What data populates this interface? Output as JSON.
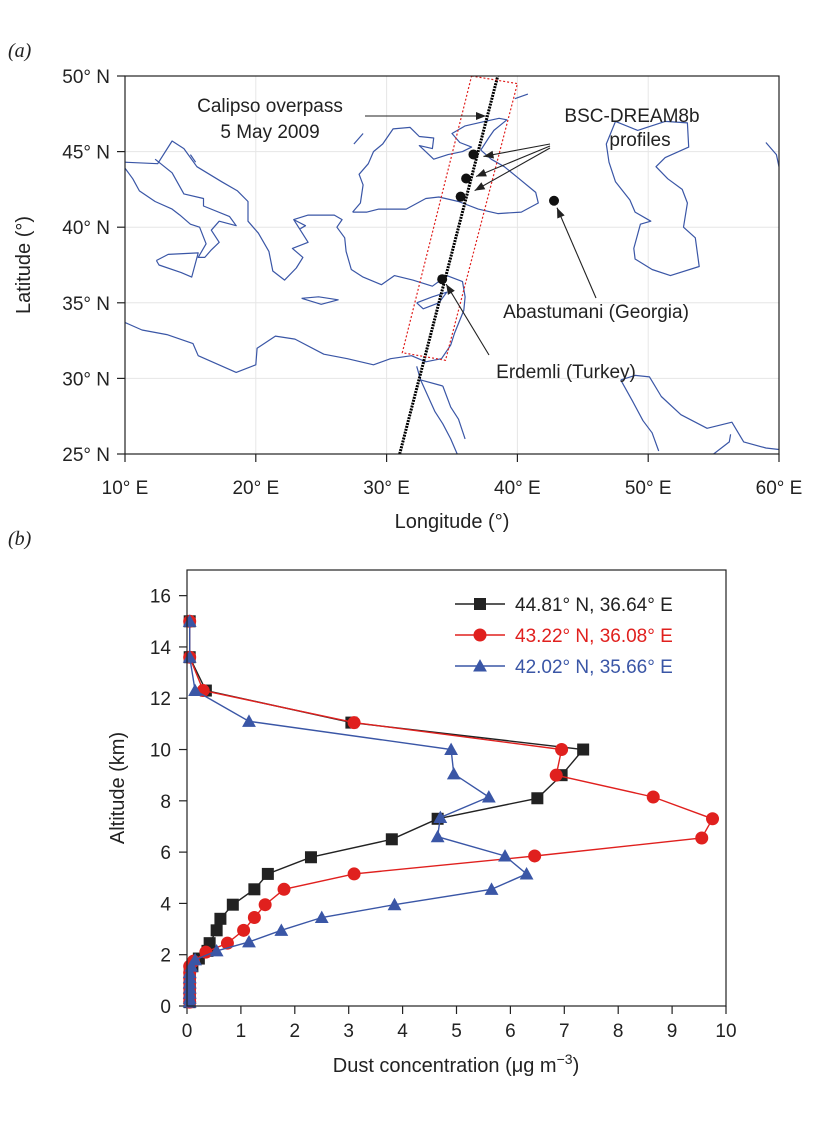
{
  "panel_a_label": "(a)",
  "panel_b_label": "(b)",
  "chart_data": [
    {
      "type": "map",
      "xlabel": "Longitude (°)",
      "ylabel": "Latitude (°)",
      "xlim": [
        10,
        60
      ],
      "ylim": [
        25,
        50
      ],
      "xticks": [
        10,
        20,
        30,
        40,
        50,
        60
      ],
      "xtick_labels": [
        "10° E",
        "20° E",
        "30° E",
        "40° E",
        "50° E",
        "60° E"
      ],
      "yticks": [
        25,
        30,
        35,
        40,
        45,
        50
      ],
      "ytick_labels": [
        "25° N",
        "30° N",
        "35° N",
        "40° N",
        "45° N",
        "50° N"
      ],
      "coastline_color": "#3a56a6",
      "track_color": "#000000",
      "box_color": "#e0201e",
      "annotations": {
        "calipso_line1": "Calipso overpass",
        "calipso_line2": "5 May 2009",
        "bsc_line1": "BSC-DREAM8b",
        "bsc_line2": "profiles",
        "abastumani": "Abastumani (Georgia)",
        "erdemli": "Erdemli (Turkey)"
      },
      "calipso_track": [
        [
          31.0,
          25.0
        ],
        [
          38.5,
          50.0
        ]
      ],
      "overpass_box": [
        [
          36.5,
          50.0
        ],
        [
          40.0,
          49.5
        ],
        [
          34.5,
          31.2
        ],
        [
          31.2,
          31.7
        ]
      ],
      "profile_points": [
        [
          36.64,
          44.81
        ],
        [
          36.08,
          43.22
        ],
        [
          35.66,
          42.02
        ]
      ],
      "stations": [
        {
          "name": "Abastumani",
          "lon": 42.8,
          "lat": 41.75
        },
        {
          "name": "Erdemli",
          "lon": 34.25,
          "lat": 36.56
        }
      ]
    },
    {
      "type": "line",
      "xlabel": "Dust concentration (μg m",
      "xlabel_sup": "−3",
      "xlabel_end": ")",
      "ylabel": "Altitude (km)",
      "xlim": [
        0,
        10
      ],
      "ylim": [
        0,
        17
      ],
      "xticks": [
        0,
        1,
        2,
        3,
        4,
        5,
        6,
        7,
        8,
        9,
        10
      ],
      "yticks": [
        0,
        2,
        4,
        6,
        8,
        10,
        12,
        14,
        16
      ],
      "legend_position": "top-right",
      "series": [
        {
          "name": "44.81° N, 36.64° E",
          "color": "#222222",
          "marker": "square",
          "points": [
            [
              0.05,
              0.15
            ],
            [
              0.05,
              0.3
            ],
            [
              0.05,
              0.5
            ],
            [
              0.05,
              0.7
            ],
            [
              0.05,
              0.9
            ],
            [
              0.05,
              1.1
            ],
            [
              0.05,
              1.3
            ],
            [
              0.1,
              1.55
            ],
            [
              0.22,
              1.85
            ],
            [
              0.38,
              2.15
            ],
            [
              0.42,
              2.45
            ],
            [
              0.55,
              2.95
            ],
            [
              0.62,
              3.4
            ],
            [
              0.85,
              3.95
            ],
            [
              1.25,
              4.55
            ],
            [
              1.5,
              5.15
            ],
            [
              2.3,
              5.8
            ],
            [
              3.8,
              6.5
            ],
            [
              4.65,
              7.3
            ],
            [
              6.5,
              8.1
            ],
            [
              6.95,
              9.0
            ],
            [
              7.35,
              10.0
            ],
            [
              3.05,
              11.05
            ],
            [
              0.35,
              12.3
            ],
            [
              0.05,
              13.6
            ],
            [
              0.05,
              15.0
            ]
          ]
        },
        {
          "name": "43.22° N, 36.08° E",
          "color": "#e0201e",
          "marker": "circle",
          "points": [
            [
              0.05,
              0.15
            ],
            [
              0.05,
              0.3
            ],
            [
              0.05,
              0.5
            ],
            [
              0.05,
              0.7
            ],
            [
              0.05,
              0.9
            ],
            [
              0.05,
              1.1
            ],
            [
              0.05,
              1.3
            ],
            [
              0.05,
              1.55
            ],
            [
              0.12,
              1.75
            ],
            [
              0.35,
              2.1
            ],
            [
              0.75,
              2.45
            ],
            [
              1.05,
              2.95
            ],
            [
              1.25,
              3.45
            ],
            [
              1.45,
              3.95
            ],
            [
              1.8,
              4.55
            ],
            [
              3.1,
              5.15
            ],
            [
              6.45,
              5.85
            ],
            [
              9.55,
              6.55
            ],
            [
              9.75,
              7.3
            ],
            [
              8.65,
              8.15
            ],
            [
              6.85,
              9.0
            ],
            [
              6.95,
              10.0
            ],
            [
              3.1,
              11.05
            ],
            [
              0.3,
              12.3
            ],
            [
              0.05,
              13.6
            ],
            [
              0.05,
              15.0
            ]
          ]
        },
        {
          "name": "42.02° N, 35.66° E",
          "color": "#3a56a6",
          "marker": "triangle",
          "points": [
            [
              0.05,
              0.15
            ],
            [
              0.05,
              0.3
            ],
            [
              0.05,
              0.5
            ],
            [
              0.05,
              0.7
            ],
            [
              0.05,
              0.9
            ],
            [
              0.05,
              1.1
            ],
            [
              0.05,
              1.3
            ],
            [
              0.08,
              1.55
            ],
            [
              0.15,
              1.8
            ],
            [
              0.55,
              2.15
            ],
            [
              1.15,
              2.5
            ],
            [
              1.75,
              2.95
            ],
            [
              2.5,
              3.45
            ],
            [
              3.85,
              3.95
            ],
            [
              5.65,
              4.55
            ],
            [
              6.3,
              5.15
            ],
            [
              5.9,
              5.85
            ],
            [
              4.65,
              6.6
            ],
            [
              4.7,
              7.35
            ],
            [
              5.6,
              8.15
            ],
            [
              4.95,
              9.05
            ],
            [
              4.9,
              10.0
            ],
            [
              1.15,
              11.1
            ],
            [
              0.15,
              12.3
            ],
            [
              0.05,
              13.6
            ],
            [
              0.05,
              15.0
            ]
          ]
        }
      ]
    }
  ]
}
